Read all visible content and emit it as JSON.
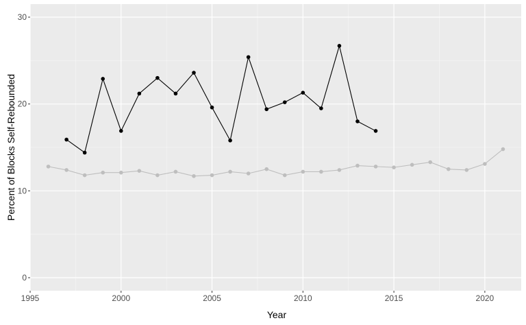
{
  "chart_data": {
    "type": "line",
    "title": "",
    "xlabel": "Year",
    "ylabel": "Percent of Blocks Self-Rebounded",
    "xlim": [
      1995,
      2022
    ],
    "ylim": [
      -1.5,
      31.5
    ],
    "x_ticks": [
      1995,
      2000,
      2005,
      2010,
      2015,
      2020
    ],
    "x_tick_labels": [
      "1995",
      "2000",
      "2005",
      "2010",
      "2015",
      "2020"
    ],
    "y_ticks": [
      0,
      10,
      20,
      30
    ],
    "y_tick_labels": [
      "0",
      "10",
      "20",
      "30"
    ],
    "grid": true,
    "legend": "none",
    "colors": {
      "panel": "#ebebeb",
      "grid": "#ffffff",
      "series_black": "#000000",
      "series_gray": "#bebebe"
    },
    "series": [
      {
        "color": "#bebebe",
        "x": [
          1996,
          1997,
          1998,
          1999,
          2000,
          2001,
          2002,
          2003,
          2004,
          2005,
          2006,
          2007,
          2008,
          2009,
          2010,
          2011,
          2012,
          2013,
          2014,
          2015,
          2016,
          2017,
          2018,
          2019,
          2020,
          2021
        ],
        "values": [
          12.8,
          12.4,
          11.8,
          12.1,
          12.1,
          12.3,
          11.8,
          12.2,
          11.7,
          11.8,
          12.2,
          12.0,
          12.5,
          11.8,
          12.2,
          12.2,
          12.4,
          12.9,
          12.8,
          12.7,
          13.0,
          13.3,
          12.5,
          12.4,
          13.1,
          14.8
        ]
      },
      {
        "color": "#000000",
        "x": [
          1997,
          1998,
          1999,
          2000,
          2001,
          2002,
          2003,
          2004,
          2005,
          2006,
          2007,
          2008,
          2009,
          2010,
          2011,
          2012,
          2013,
          2014
        ],
        "values": [
          15.9,
          14.4,
          22.9,
          16.9,
          21.2,
          23.0,
          21.2,
          23.6,
          19.6,
          15.8,
          25.4,
          19.4,
          20.2,
          21.3,
          19.5,
          26.7,
          18.0,
          16.9
        ]
      }
    ]
  }
}
